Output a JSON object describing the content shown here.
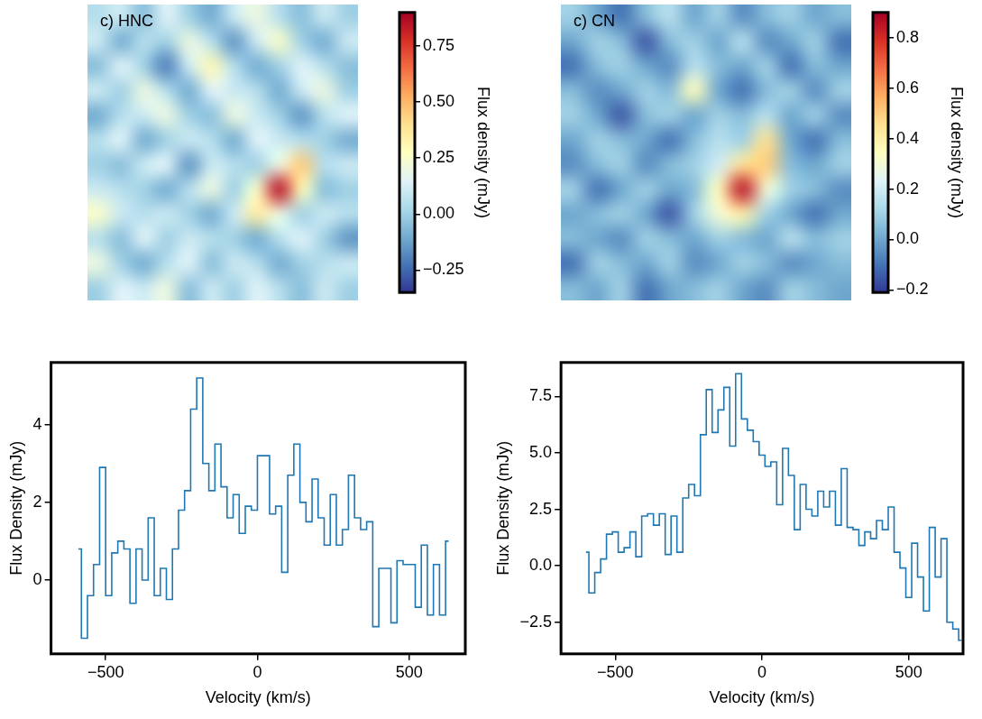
{
  "chart_data": [
    {
      "type": "heatmap",
      "title": "c) HNC",
      "tick_labels": false,
      "cells": [
        [
          0.05,
          0.1,
          -0.05,
          0.15,
          0.0,
          -0.1,
          0.1,
          0.2,
          0.05,
          -0.05,
          0.1,
          0.0
        ],
        [
          0.1,
          -0.1,
          0.05,
          0.0,
          0.2,
          0.05,
          -0.15,
          0.1,
          0.25,
          0.0,
          -0.1,
          0.1
        ],
        [
          -0.05,
          0.15,
          0.0,
          -0.2,
          0.1,
          0.3,
          0.05,
          -0.1,
          0.0,
          0.15,
          0.05,
          -0.05
        ],
        [
          0.1,
          0.0,
          0.2,
          0.05,
          -0.1,
          0.15,
          0.1,
          0.05,
          -0.1,
          0.1,
          0.2,
          0.0
        ],
        [
          -0.1,
          0.05,
          0.1,
          0.2,
          0.0,
          -0.05,
          0.2,
          0.1,
          0.0,
          -0.15,
          0.05,
          0.15
        ],
        [
          0.05,
          0.15,
          -0.1,
          0.0,
          0.1,
          0.05,
          -0.1,
          0.15,
          0.1,
          0.05,
          0.0,
          -0.1
        ],
        [
          0.0,
          -0.05,
          0.1,
          0.15,
          -0.15,
          0.1,
          0.05,
          0.0,
          0.2,
          0.45,
          0.05,
          0.1
        ],
        [
          0.1,
          0.05,
          0.0,
          -0.1,
          0.05,
          0.2,
          0.0,
          0.25,
          0.85,
          0.3,
          -0.05,
          0.0
        ],
        [
          0.25,
          0.1,
          0.05,
          0.1,
          0.0,
          -0.1,
          0.1,
          0.35,
          0.2,
          0.0,
          0.1,
          0.05
        ],
        [
          0.05,
          -0.05,
          0.15,
          0.0,
          0.1,
          0.05,
          0.0,
          -0.1,
          0.05,
          0.15,
          0.0,
          -0.15
        ],
        [
          0.2,
          0.0,
          -0.1,
          0.05,
          0.15,
          -0.05,
          0.1,
          0.05,
          -0.1,
          0.0,
          0.05,
          0.1
        ],
        [
          0.0,
          0.15,
          0.1,
          0.2,
          -0.05,
          0.1,
          0.0,
          0.15,
          0.05,
          -0.05,
          0.1,
          0.0
        ]
      ],
      "colorbar": {
        "label": "Flux density (mJy)",
        "range": [
          -0.35,
          0.9
        ],
        "ticks": [
          {
            "value": -0.25,
            "label": "−0.25"
          },
          {
            "value": 0,
            "label": "0.00"
          },
          0.25,
          {
            "value": 0.5,
            "label": "0.50"
          },
          0.75
        ]
      }
    },
    {
      "type": "heatmap",
      "title": "c) CN",
      "tick_labels": false,
      "cells": [
        [
          0.1,
          0.0,
          -0.1,
          0.05,
          0.15,
          0.0,
          0.1,
          -0.05,
          0.05,
          0.1,
          0.0,
          0.05
        ],
        [
          0.0,
          0.1,
          0.05,
          -0.15,
          0.05,
          0.1,
          0.0,
          0.15,
          -0.05,
          0.0,
          0.1,
          -0.1
        ],
        [
          -0.1,
          0.05,
          0.1,
          0.0,
          -0.05,
          0.15,
          0.05,
          0.0,
          0.1,
          -0.1,
          0.05,
          0.0
        ],
        [
          0.05,
          -0.05,
          0.0,
          0.1,
          0.05,
          0.35,
          0.0,
          -0.1,
          0.05,
          0.1,
          -0.05,
          0.1
        ],
        [
          0.1,
          0.0,
          -0.15,
          0.05,
          0.1,
          0.0,
          0.1,
          0.05,
          0.15,
          0.0,
          0.1,
          -0.05
        ],
        [
          0.0,
          0.1,
          0.05,
          0.0,
          -0.1,
          0.05,
          0.15,
          0.1,
          0.45,
          0.0,
          -0.1,
          0.05
        ],
        [
          -0.05,
          0.05,
          0.1,
          -0.05,
          0.05,
          0.1,
          0.2,
          0.45,
          0.5,
          0.05,
          0.0,
          0.1
        ],
        [
          0.1,
          -0.1,
          0.0,
          0.1,
          0.0,
          0.05,
          0.35,
          0.85,
          0.3,
          0.1,
          0.05,
          -0.05
        ],
        [
          0.0,
          0.05,
          0.1,
          0.0,
          -0.15,
          0.1,
          0.3,
          0.4,
          0.1,
          0.0,
          -0.1,
          0.0
        ],
        [
          0.05,
          0.0,
          -0.05,
          0.1,
          0.05,
          0.0,
          0.1,
          0.05,
          0.0,
          0.15,
          0.05,
          0.1
        ],
        [
          -0.1,
          0.1,
          0.05,
          0.0,
          0.1,
          -0.05,
          0.0,
          0.1,
          0.05,
          -0.05,
          0.0,
          0.05
        ],
        [
          0.05,
          0.0,
          0.1,
          -0.1,
          0.0,
          0.05,
          0.1,
          0.0,
          -0.05,
          0.1,
          0.05,
          0.0
        ]
      ],
      "colorbar": {
        "label": "Flux density (mJy)",
        "range": [
          -0.21,
          0.9
        ],
        "ticks": [
          {
            "value": -0.2,
            "label": "−0.2"
          },
          {
            "value": 0,
            "label": "0.0"
          },
          0.2,
          0.4,
          0.6,
          0.8
        ]
      }
    },
    {
      "type": "line",
      "x_label": "Velocity (km/s)",
      "y_label": "Flux Density (mJy)",
      "color": "#1f77b4",
      "line_style": "steps",
      "grid": false,
      "xlim": [
        -680,
        685
      ],
      "ylim": [
        -1.9,
        5.6
      ],
      "xticks": [
        {
          "value": -500,
          "label": "−500"
        },
        0,
        500
      ],
      "yticks": [
        0,
        2,
        4
      ],
      "x": [
        -590,
        -570,
        -550,
        -530,
        -510,
        -490,
        -470,
        -450,
        -430,
        -410,
        -390,
        -370,
        -350,
        -330,
        -310,
        -290,
        -270,
        -250,
        -230,
        -210,
        -190,
        -170,
        -150,
        -130,
        -110,
        -90,
        -70,
        -50,
        -30,
        -10,
        10,
        30,
        50,
        70,
        90,
        110,
        130,
        150,
        170,
        190,
        210,
        230,
        250,
        270,
        290,
        310,
        330,
        350,
        370,
        390,
        410,
        430,
        450,
        470,
        490,
        510,
        530,
        550,
        570,
        590,
        610,
        630
      ],
      "values": [
        0.8,
        -1.5,
        -0.4,
        0.4,
        2.9,
        -0.4,
        0.7,
        1.0,
        0.8,
        -0.6,
        0.8,
        0.0,
        1.6,
        -0.4,
        0.3,
        -0.5,
        0.8,
        1.8,
        2.3,
        4.4,
        5.2,
        3.0,
        2.3,
        3.5,
        2.4,
        1.6,
        2.2,
        1.2,
        1.9,
        1.8,
        3.2,
        3.2,
        1.7,
        1.9,
        0.2,
        2.7,
        3.5,
        2.0,
        1.5,
        2.6,
        1.6,
        0.9,
        2.2,
        0.9,
        1.3,
        2.7,
        1.6,
        1.3,
        1.5,
        -1.2,
        0.3,
        0.3,
        -1.1,
        0.5,
        0.4,
        0.4,
        -0.7,
        0.9,
        -0.9,
        0.4,
        -0.9,
        1.0
      ]
    },
    {
      "type": "line",
      "x_label": "Velocity (km/s)",
      "y_label": "Flux Density (mJy)",
      "color": "#1f77b4",
      "line_style": "steps",
      "grid": false,
      "xlim": [
        -685,
        685
      ],
      "ylim": [
        -3.9,
        9.0
      ],
      "xticks": [
        {
          "value": -500,
          "label": "−500"
        },
        0,
        500
      ],
      "yticks": [
        {
          "value": -2.5,
          "label": "−2.5"
        },
        {
          "value": 0,
          "label": "0.0"
        },
        2.5,
        {
          "value": 5,
          "label": "5.0"
        },
        7.5
      ],
      "x": [
        -600,
        -580,
        -560,
        -540,
        -520,
        -500,
        -480,
        -460,
        -440,
        -420,
        -400,
        -380,
        -360,
        -340,
        -320,
        -300,
        -280,
        -260,
        -240,
        -220,
        -200,
        -180,
        -160,
        -140,
        -120,
        -100,
        -80,
        -60,
        -40,
        -20,
        0,
        20,
        40,
        60,
        80,
        100,
        120,
        140,
        160,
        180,
        200,
        220,
        240,
        260,
        280,
        300,
        320,
        340,
        360,
        380,
        400,
        420,
        440,
        460,
        480,
        500,
        520,
        540,
        560,
        580,
        600,
        620,
        640,
        660,
        680
      ],
      "values": [
        0.6,
        -1.2,
        -0.3,
        0.3,
        1.4,
        1.5,
        0.6,
        0.8,
        1.5,
        0.4,
        2.2,
        2.3,
        1.8,
        2.3,
        0.5,
        2.2,
        0.6,
        3.0,
        3.6,
        3.1,
        5.8,
        7.8,
        5.9,
        6.9,
        7.9,
        5.3,
        8.5,
        6.5,
        6.0,
        5.5,
        4.9,
        4.4,
        4.6,
        2.7,
        5.2,
        4.0,
        1.6,
        3.6,
        2.5,
        2.2,
        3.3,
        2.6,
        3.3,
        1.8,
        4.3,
        1.7,
        1.6,
        0.9,
        1.5,
        1.2,
        2.0,
        1.6,
        2.6,
        0.6,
        -0.1,
        -1.4,
        1.0,
        -0.5,
        -2.0,
        1.7,
        -0.5,
        1.2,
        -2.5,
        -2.8,
        -3.3
      ]
    }
  ]
}
